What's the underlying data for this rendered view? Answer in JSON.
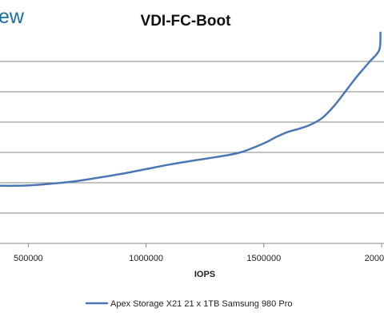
{
  "watermark": {
    "text": "ew"
  },
  "chart_data": {
    "type": "line",
    "title": "VDI-FC-Boot",
    "xlabel": "IOPS",
    "ylabel": "",
    "xlim": [
      380000,
      2010000
    ],
    "ylim": [
      0,
      6.5
    ],
    "y_gridlines": [
      1,
      2,
      3,
      4,
      5,
      6
    ],
    "x_ticks": [
      500000,
      1000000,
      1500000,
      2000000
    ],
    "x_tick_labels": [
      "500000",
      "1000000",
      "1500000",
      "2000000"
    ],
    "grid": true,
    "legend_position": "bottom",
    "series": [
      {
        "name": "Apex Storage X21 21 x 1TB Samsung 980 Pro",
        "color": "#4a77b4",
        "x": [
          380000,
          450000,
          500000,
          600000,
          700000,
          800000,
          900000,
          1000000,
          1100000,
          1200000,
          1300000,
          1400000,
          1500000,
          1550000,
          1600000,
          1650000,
          1700000,
          1750000,
          1800000,
          1850000,
          1900000,
          1950000,
          1990000,
          1995000
        ],
        "values": [
          1.9,
          1.9,
          1.91,
          1.97,
          2.05,
          2.17,
          2.3,
          2.45,
          2.6,
          2.73,
          2.85,
          3.0,
          3.3,
          3.5,
          3.67,
          3.78,
          3.92,
          4.15,
          4.55,
          5.05,
          5.55,
          6.0,
          6.38,
          6.95
        ]
      }
    ]
  }
}
